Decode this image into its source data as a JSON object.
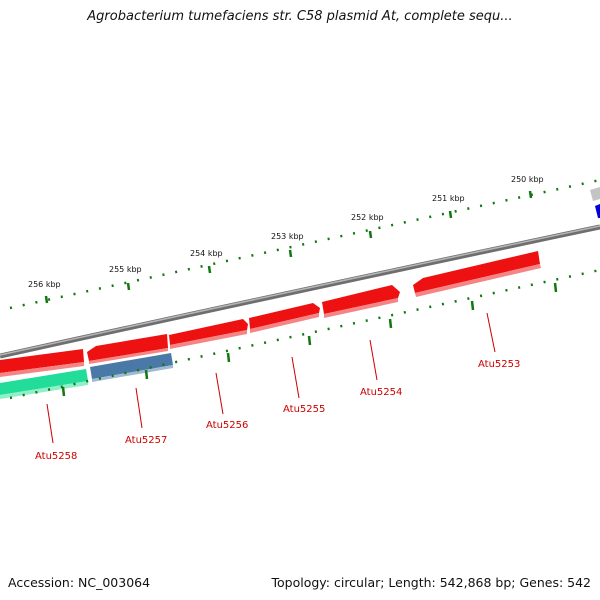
{
  "title": "Agrobacterium tumefaciens str. C58 plasmid At, complete sequ...",
  "footer": {
    "accession": "Accession: NC_003064",
    "summary": "Topology: circular; Length: 542,868 bp; Genes: 542"
  },
  "scale_labels": [
    "250 kbp",
    "251 kbp",
    "252 kbp",
    "253 kbp",
    "254 kbp",
    "255 kbp",
    "256 kbp"
  ],
  "gene_labels": [
    "Atu5253",
    "Atu5254",
    "Atu5255",
    "Atu5256",
    "Atu5257",
    "Atu5258"
  ],
  "colors": {
    "backbone": "#808080",
    "gene_red": "#ee1111",
    "gene_blue": "#4a79a8",
    "gene_green": "#22dd99",
    "gene_darkblue": "#0000dd",
    "tick_green": "#117711",
    "label_red": "#cc0000"
  },
  "icons": [
    "circular-genome-map"
  ]
}
